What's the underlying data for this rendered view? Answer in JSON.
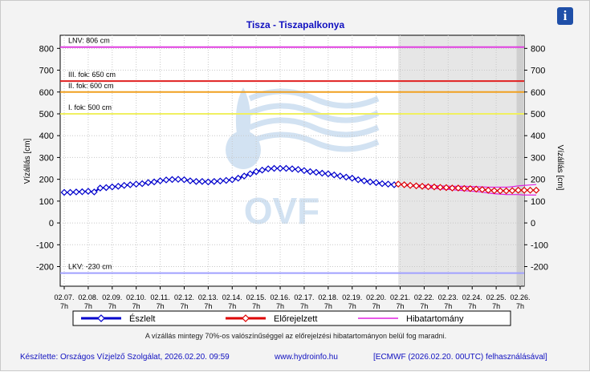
{
  "header": {
    "info_icon": "info-icon",
    "info_label": "i"
  },
  "chart_data": {
    "type": "line",
    "title": "Tisza - Tiszapalkonya",
    "ylabel": "Vízállás [cm]",
    "ylabel_right": "Vízállás [cm]",
    "ylim": [
      -290,
      860
    ],
    "yticks": [
      -200,
      -100,
      0,
      100,
      200,
      300,
      400,
      500,
      600,
      700,
      800
    ],
    "grid": true,
    "legend_position": "bottom",
    "x_ticks": [
      {
        "date": "02.07.",
        "hour": "7h"
      },
      {
        "date": "02.08.",
        "hour": "7h"
      },
      {
        "date": "02.09.",
        "hour": "7h"
      },
      {
        "date": "02.10.",
        "hour": "7h"
      },
      {
        "date": "02.11.",
        "hour": "7h"
      },
      {
        "date": "02.12.",
        "hour": "7h"
      },
      {
        "date": "02.13.",
        "hour": "7h"
      },
      {
        "date": "02.14.",
        "hour": "7h"
      },
      {
        "date": "02.15.",
        "hour": "7h"
      },
      {
        "date": "02.16.",
        "hour": "7h"
      },
      {
        "date": "02.17.",
        "hour": "7h"
      },
      {
        "date": "02.18.",
        "hour": "7h"
      },
      {
        "date": "02.19.",
        "hour": "7h"
      },
      {
        "date": "02.20.",
        "hour": "7h"
      },
      {
        "date": "02.21.",
        "hour": "7h"
      },
      {
        "date": "02.22.",
        "hour": "7h"
      },
      {
        "date": "02.23.",
        "hour": "7h"
      },
      {
        "date": "02.24.",
        "hour": "7h"
      },
      {
        "date": "02.25.",
        "hour": "7h"
      },
      {
        "date": "02.26.",
        "hour": "7h"
      }
    ],
    "thresholds": [
      {
        "label": "LNV: 806 cm",
        "value": 806,
        "color": "#e040e0"
      },
      {
        "label": "III. fok: 650 cm",
        "value": 650,
        "color": "#e02020"
      },
      {
        "label": "II. fok: 600 cm",
        "value": 600,
        "color": "#f0a020"
      },
      {
        "label": "I. fok: 500 cm",
        "value": 500,
        "color": "#f0f060"
      },
      {
        "label": "LKV: -230 cm",
        "value": -230,
        "color": "#a0a0ff"
      }
    ],
    "forecast_start_day": 13.92,
    "uncertain_start_day": 18.85,
    "series": [
      {
        "name": "Észlelt",
        "color": "#0000cc",
        "marker": "diamond",
        "x": [
          0,
          0.25,
          0.5,
          0.75,
          1,
          1.25,
          1.5,
          1.75,
          2,
          2.25,
          2.5,
          2.75,
          3,
          3.25,
          3.5,
          3.75,
          4,
          4.25,
          4.5,
          4.75,
          5,
          5.25,
          5.5,
          5.75,
          6,
          6.25,
          6.5,
          6.75,
          7,
          7.25,
          7.5,
          7.75,
          8,
          8.25,
          8.5,
          8.75,
          9,
          9.25,
          9.5,
          9.75,
          10,
          10.25,
          10.5,
          10.75,
          11,
          11.25,
          11.5,
          11.75,
          12,
          12.25,
          12.5,
          12.75,
          13,
          13.25,
          13.5,
          13.75
        ],
        "y": [
          140,
          140,
          142,
          143,
          145,
          142,
          160,
          162,
          165,
          168,
          172,
          175,
          178,
          180,
          185,
          188,
          193,
          197,
          199,
          200,
          198,
          193,
          190,
          190,
          188,
          190,
          192,
          195,
          198,
          205,
          215,
          225,
          235,
          242,
          248,
          250,
          250,
          250,
          248,
          245,
          240,
          235,
          232,
          228,
          225,
          220,
          215,
          210,
          205,
          198,
          193,
          188,
          185,
          180,
          178,
          175
        ]
      },
      {
        "name": "Előrejelzett",
        "color": "#dd0000",
        "marker": "diamond",
        "x": [
          13.92,
          14.17,
          14.42,
          14.67,
          14.92,
          15.17,
          15.42,
          15.67,
          15.92,
          16.17,
          16.42,
          16.67,
          16.92,
          17.17,
          17.42,
          17.67,
          17.92,
          18.17,
          18.42,
          18.67,
          18.92,
          19.17,
          19.42,
          19.67
        ],
        "y": [
          178,
          175,
          172,
          170,
          168,
          166,
          165,
          163,
          162,
          160,
          160,
          158,
          157,
          155,
          153,
          150,
          148,
          147,
          147,
          148,
          150,
          150,
          150,
          150
        ]
      },
      {
        "name": "Hibatartomány",
        "color": "#e020e0",
        "upper": [
          180,
          178,
          175,
          174,
          173,
          172,
          171,
          170,
          169,
          168,
          168,
          168,
          167,
          166,
          165,
          164,
          164,
          164,
          164,
          166,
          170,
          172,
          174,
          176
        ],
        "lower": [
          176,
          172,
          169,
          166,
          163,
          160,
          158,
          156,
          154,
          152,
          150,
          148,
          146,
          144,
          141,
          137,
          134,
          132,
          130,
          130,
          130,
          128,
          128,
          128
        ]
      }
    ],
    "note": "A vízállás mintegy 70%-os valószínűséggel az előrejelzési hibatartományon belül fog maradni."
  },
  "footer": {
    "credit": "Készítette: Országos Vízjelző Szolgálat, 2026.02.20. 09:59",
    "website": "www.hydroinfo.hu",
    "source": "[ECMWF (2026.02.20. 00UTC) felhasználásával]"
  },
  "watermark": {
    "text": "OVF"
  }
}
